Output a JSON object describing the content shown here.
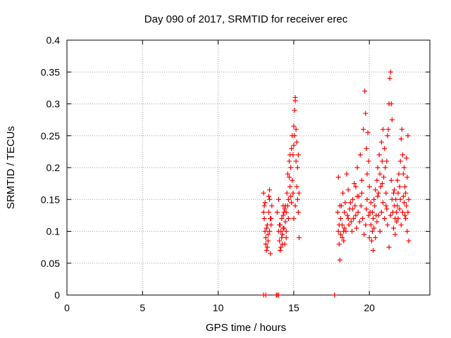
{
  "chart_data": {
    "type": "scatter",
    "title": "Day 090 of 2017, SRMTID for receiver erec",
    "xlabel": "GPS time / hours",
    "ylabel": "SRMTID / TECUs",
    "xlim": [
      0,
      24
    ],
    "ylim": [
      0,
      0.4
    ],
    "xticks": [
      0,
      5,
      10,
      15,
      20
    ],
    "xtick_labels": [
      "0",
      "5",
      "10",
      "15",
      "20"
    ],
    "yticks": [
      0,
      0.05,
      0.1,
      0.15,
      0.2,
      0.25,
      0.3,
      0.35,
      0.4
    ],
    "ytick_labels": [
      "0",
      "0.05",
      "0.1",
      "0.15",
      "0.2",
      "0.25",
      "0.3",
      "0.35",
      "0.4"
    ],
    "grid": true,
    "marker": "+",
    "series": [
      {
        "name": "SRMTID",
        "color": "#ff0000",
        "points": [
          [
            13.0,
            0.0
          ],
          [
            13.15,
            0.0
          ],
          [
            13.85,
            0.0
          ],
          [
            13.9,
            0.0
          ],
          [
            14.0,
            0.0
          ],
          [
            17.7,
            0.0
          ],
          [
            13.0,
            0.16
          ],
          [
            13.05,
            0.12
          ],
          [
            13.1,
            0.1
          ],
          [
            13.15,
            0.08
          ],
          [
            13.2,
            0.07
          ],
          [
            13.25,
            0.11
          ],
          [
            13.3,
            0.095
          ],
          [
            13.35,
            0.13
          ],
          [
            13.4,
            0.15
          ],
          [
            13.45,
            0.065
          ],
          [
            13.5,
            0.12
          ],
          [
            13.55,
            0.14
          ],
          [
            13.0,
            0.13
          ],
          [
            13.1,
            0.145
          ],
          [
            13.2,
            0.105
          ],
          [
            13.3,
            0.085
          ],
          [
            13.4,
            0.165
          ],
          [
            13.45,
            0.12
          ],
          [
            13.15,
            0.09
          ],
          [
            13.25,
            0.075
          ],
          [
            13.35,
            0.155
          ],
          [
            13.5,
            0.11
          ],
          [
            13.05,
            0.14
          ],
          [
            13.4,
            0.1
          ],
          [
            13.9,
            0.13
          ],
          [
            14.0,
            0.1
          ],
          [
            14.05,
            0.085
          ],
          [
            14.1,
            0.11
          ],
          [
            14.15,
            0.075
          ],
          [
            14.2,
            0.12
          ],
          [
            14.25,
            0.095
          ],
          [
            14.3,
            0.14
          ],
          [
            14.35,
            0.105
          ],
          [
            14.4,
            0.08
          ],
          [
            14.45,
            0.115
          ],
          [
            14.5,
            0.1
          ],
          [
            14.0,
            0.15
          ],
          [
            14.1,
            0.07
          ],
          [
            14.2,
            0.09
          ],
          [
            14.3,
            0.125
          ],
          [
            14.4,
            0.135
          ],
          [
            14.05,
            0.11
          ],
          [
            14.15,
            0.1
          ],
          [
            14.25,
            0.08
          ],
          [
            14.35,
            0.13
          ],
          [
            14.5,
            0.09
          ],
          [
            14.45,
            0.14
          ],
          [
            14.3,
            0.105
          ],
          [
            14.5,
            0.13
          ],
          [
            14.55,
            0.16
          ],
          [
            14.6,
            0.19
          ],
          [
            14.65,
            0.15
          ],
          [
            14.7,
            0.21
          ],
          [
            14.75,
            0.17
          ],
          [
            14.8,
            0.2
          ],
          [
            14.85,
            0.23
          ],
          [
            14.9,
            0.25
          ],
          [
            14.95,
            0.22
          ],
          [
            15.0,
            0.265
          ],
          [
            15.05,
            0.29
          ],
          [
            15.1,
            0.31
          ],
          [
            15.15,
            0.26
          ],
          [
            15.2,
            0.24
          ],
          [
            15.25,
            0.2
          ],
          [
            15.3,
            0.22
          ],
          [
            15.35,
            0.16
          ],
          [
            14.6,
            0.14
          ],
          [
            14.7,
            0.185
          ],
          [
            14.8,
            0.155
          ],
          [
            14.9,
            0.18
          ],
          [
            15.0,
            0.12
          ],
          [
            15.1,
            0.14
          ],
          [
            15.2,
            0.17
          ],
          [
            15.3,
            0.13
          ],
          [
            15.35,
            0.09
          ],
          [
            15.15,
            0.21
          ],
          [
            15.05,
            0.25
          ],
          [
            14.95,
            0.16
          ],
          [
            14.75,
            0.22
          ],
          [
            15.25,
            0.15
          ],
          [
            14.65,
            0.12
          ],
          [
            15.1,
            0.305
          ],
          [
            15.0,
            0.235
          ],
          [
            14.85,
            0.145
          ],
          [
            17.9,
            0.13
          ],
          [
            17.95,
            0.1
          ],
          [
            18.0,
            0.08
          ],
          [
            18.05,
            0.055
          ],
          [
            18.1,
            0.12
          ],
          [
            18.15,
            0.14
          ],
          [
            18.2,
            0.11
          ],
          [
            18.25,
            0.16
          ],
          [
            18.3,
            0.1
          ],
          [
            18.35,
            0.13
          ],
          [
            18.4,
            0.145
          ],
          [
            18.5,
            0.19
          ],
          [
            18.6,
            0.165
          ],
          [
            18.7,
            0.135
          ],
          [
            18.8,
            0.115
          ],
          [
            18.9,
            0.15
          ],
          [
            19.0,
            0.175
          ],
          [
            19.1,
            0.125
          ],
          [
            19.2,
            0.2
          ],
          [
            19.3,
            0.155
          ],
          [
            19.4,
            0.22
          ],
          [
            19.5,
            0.18
          ],
          [
            19.6,
            0.26
          ],
          [
            19.7,
            0.32
          ],
          [
            19.75,
            0.285
          ],
          [
            19.8,
            0.23
          ],
          [
            19.85,
            0.19
          ],
          [
            19.9,
            0.255
          ],
          [
            19.95,
            0.21
          ],
          [
            20.0,
            0.17
          ],
          [
            17.95,
            0.185
          ],
          [
            18.05,
            0.14
          ],
          [
            18.2,
            0.09
          ],
          [
            18.35,
            0.105
          ],
          [
            18.45,
            0.1
          ],
          [
            18.55,
            0.125
          ],
          [
            18.65,
            0.11
          ],
          [
            18.75,
            0.145
          ],
          [
            18.85,
            0.1
          ],
          [
            18.95,
            0.12
          ],
          [
            19.05,
            0.14
          ],
          [
            19.15,
            0.105
          ],
          [
            19.25,
            0.13
          ],
          [
            19.35,
            0.115
          ],
          [
            19.45,
            0.14
          ],
          [
            19.55,
            0.12
          ],
          [
            19.65,
            0.095
          ],
          [
            19.75,
            0.11
          ],
          [
            19.85,
            0.15
          ],
          [
            19.95,
            0.125
          ],
          [
            18.0,
            0.11
          ],
          [
            18.1,
            0.095
          ],
          [
            18.3,
            0.085
          ],
          [
            18.6,
            0.12
          ],
          [
            18.9,
            0.135
          ],
          [
            19.2,
            0.155
          ],
          [
            19.5,
            0.16
          ],
          [
            19.8,
            0.135
          ],
          [
            20.0,
            0.09
          ],
          [
            19.1,
            0.17
          ],
          [
            20.05,
            0.13
          ],
          [
            20.1,
            0.11
          ],
          [
            20.15,
            0.085
          ],
          [
            20.2,
            0.1
          ],
          [
            20.25,
            0.12
          ],
          [
            20.3,
            0.15
          ],
          [
            20.35,
            0.14
          ],
          [
            20.4,
            0.165
          ],
          [
            20.45,
            0.125
          ],
          [
            20.5,
            0.18
          ],
          [
            20.55,
            0.2
          ],
          [
            20.6,
            0.16
          ],
          [
            20.65,
            0.22
          ],
          [
            20.7,
            0.19
          ],
          [
            20.75,
            0.17
          ],
          [
            20.8,
            0.24
          ],
          [
            20.85,
            0.21
          ],
          [
            20.9,
            0.26
          ],
          [
            20.95,
            0.185
          ],
          [
            21.0,
            0.23
          ],
          [
            21.05,
            0.2
          ],
          [
            21.1,
            0.16
          ],
          [
            21.15,
            0.21
          ],
          [
            21.2,
            0.25
          ],
          [
            21.25,
            0.26
          ],
          [
            21.3,
            0.3
          ],
          [
            21.35,
            0.34
          ],
          [
            21.4,
            0.35
          ],
          [
            21.45,
            0.3
          ],
          [
            21.5,
            0.275
          ],
          [
            20.1,
            0.145
          ],
          [
            20.2,
            0.13
          ],
          [
            20.3,
            0.105
          ],
          [
            20.4,
            0.09
          ],
          [
            20.5,
            0.115
          ],
          [
            20.6,
            0.125
          ],
          [
            20.7,
            0.1
          ],
          [
            20.8,
            0.13
          ],
          [
            20.9,
            0.145
          ],
          [
            21.0,
            0.12
          ],
          [
            21.1,
            0.14
          ],
          [
            21.2,
            0.11
          ],
          [
            21.3,
            0.075
          ],
          [
            21.4,
            0.125
          ],
          [
            21.5,
            0.15
          ],
          [
            20.25,
            0.07
          ],
          [
            20.55,
            0.155
          ],
          [
            20.85,
            0.175
          ],
          [
            21.15,
            0.135
          ],
          [
            21.45,
            0.18
          ],
          [
            21.55,
            0.13
          ],
          [
            21.6,
            0.16
          ],
          [
            21.65,
            0.14
          ],
          [
            21.7,
            0.12
          ],
          [
            21.75,
            0.15
          ],
          [
            21.8,
            0.13
          ],
          [
            21.85,
            0.18
          ],
          [
            21.9,
            0.16
          ],
          [
            21.95,
            0.19
          ],
          [
            22.0,
            0.17
          ],
          [
            22.05,
            0.21
          ],
          [
            22.1,
            0.245
          ],
          [
            22.15,
            0.26
          ],
          [
            22.2,
            0.22
          ],
          [
            22.25,
            0.19
          ],
          [
            22.3,
            0.2
          ],
          [
            22.35,
            0.17
          ],
          [
            22.4,
            0.16
          ],
          [
            22.45,
            0.215
          ],
          [
            22.5,
            0.185
          ],
          [
            22.55,
            0.25
          ],
          [
            22.6,
            0.15
          ],
          [
            21.6,
            0.105
          ],
          [
            21.7,
            0.095
          ],
          [
            21.8,
            0.115
          ],
          [
            21.9,
            0.12
          ],
          [
            22.0,
            0.135
          ],
          [
            22.1,
            0.11
          ],
          [
            22.2,
            0.13
          ],
          [
            22.3,
            0.145
          ],
          [
            22.4,
            0.12
          ],
          [
            22.5,
            0.1
          ],
          [
            22.6,
            0.085
          ],
          [
            22.55,
            0.13
          ],
          [
            21.65,
            0.165
          ],
          [
            21.85,
            0.14
          ],
          [
            22.05,
            0.15
          ],
          [
            22.25,
            0.155
          ],
          [
            22.45,
            0.14
          ],
          [
            22.35,
            0.125
          ]
        ]
      }
    ]
  }
}
